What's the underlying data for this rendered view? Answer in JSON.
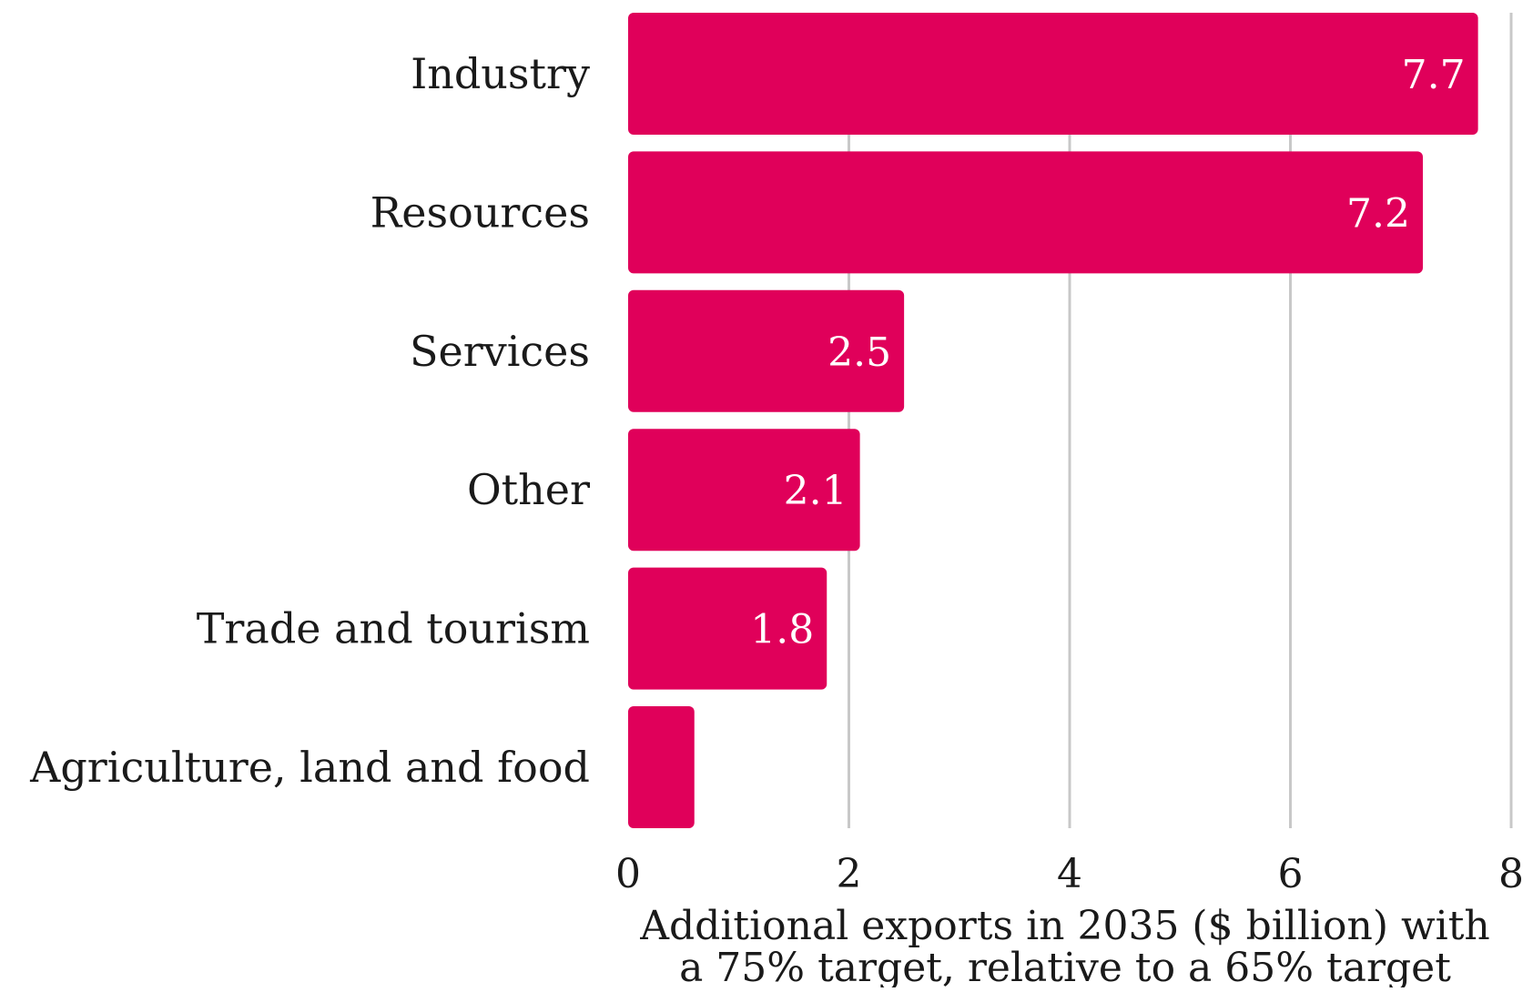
{
  "chart_data": {
    "type": "bar",
    "orientation": "horizontal",
    "categories": [
      "Industry",
      "Resources",
      "Services",
      "Other",
      "Trade and tourism",
      "Agriculture, land and food"
    ],
    "values": [
      7.7,
      7.2,
      2.5,
      2.1,
      1.8,
      0.6
    ],
    "data_labels": [
      "7.7",
      "7.2",
      "2.5",
      "2.1",
      "1.8",
      ""
    ],
    "bar_color": "#e0005a",
    "xlabel_lines": [
      "Additional exports in 2035 ($ billion) with",
      "a 75% target, relative to a 65% target"
    ],
    "xlim": [
      0,
      8
    ],
    "xticks": [
      0,
      2,
      4,
      6,
      8
    ],
    "grid": true
  }
}
